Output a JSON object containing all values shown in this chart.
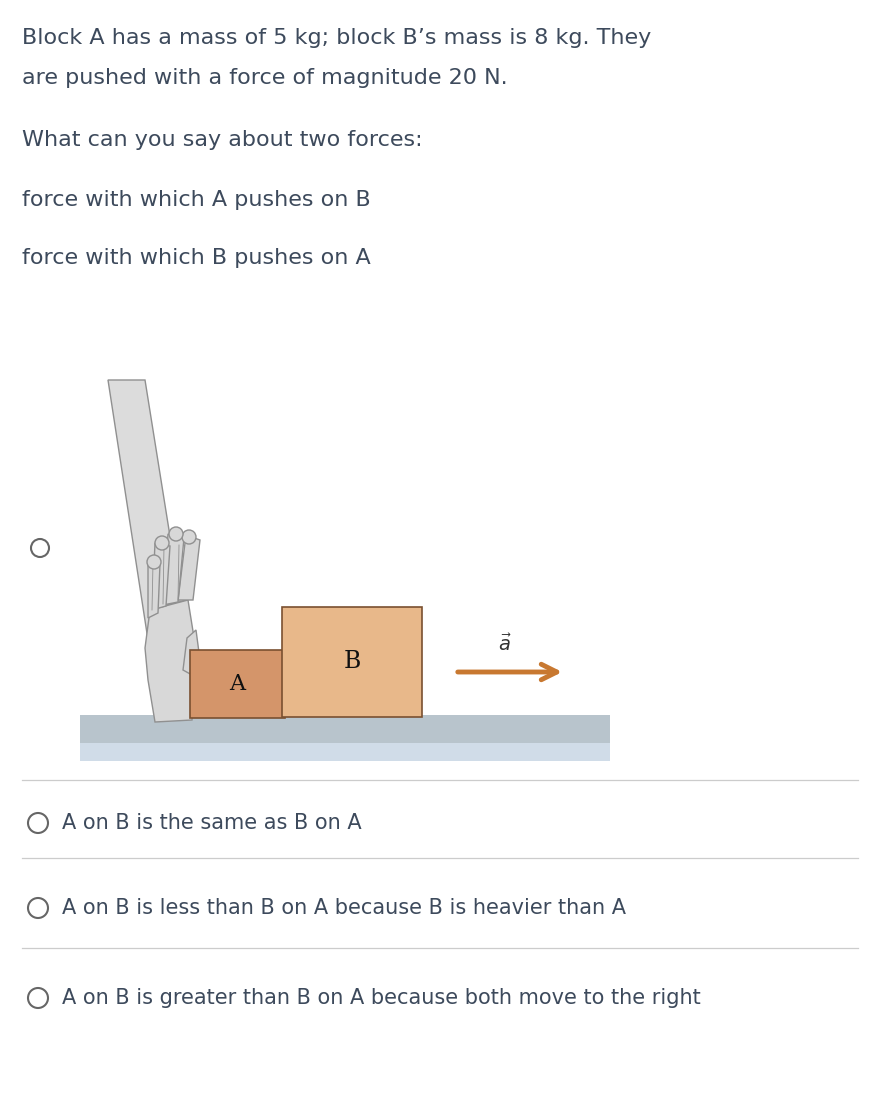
{
  "background_color": "#ffffff",
  "text_color": "#3d4a5c",
  "title_line1": "Block A has a mass of 5 kg; block B’s mass is 8 kg. They",
  "title_line2": "are pushed with a force of magnitude 20 N.",
  "question": "What can you say about two forces:",
  "force1": "force with which A pushes on B",
  "force2": "force with which B pushes on A",
  "options": [
    "A on B is the same as B on A",
    "A on B is less than B on A because B is heavier than A",
    "A on B is greater than B on A because both move to the right"
  ],
  "block_A_color": "#d4956a",
  "block_B_color": "#e8b88a",
  "block_A_label": "A",
  "block_B_label": "B",
  "arrow_color": "#c87830",
  "ground_color": "#b8c4cc",
  "ground_color2": "#d0dce8",
  "hand_skin": "#d8d8d8",
  "hand_outline": "#909090",
  "hand_sleeve": "#e8e8e8",
  "font_size_title": 16,
  "font_size_text": 16,
  "font_size_option": 15,
  "divider_color": "#cccccc",
  "radio_color": "#666666"
}
